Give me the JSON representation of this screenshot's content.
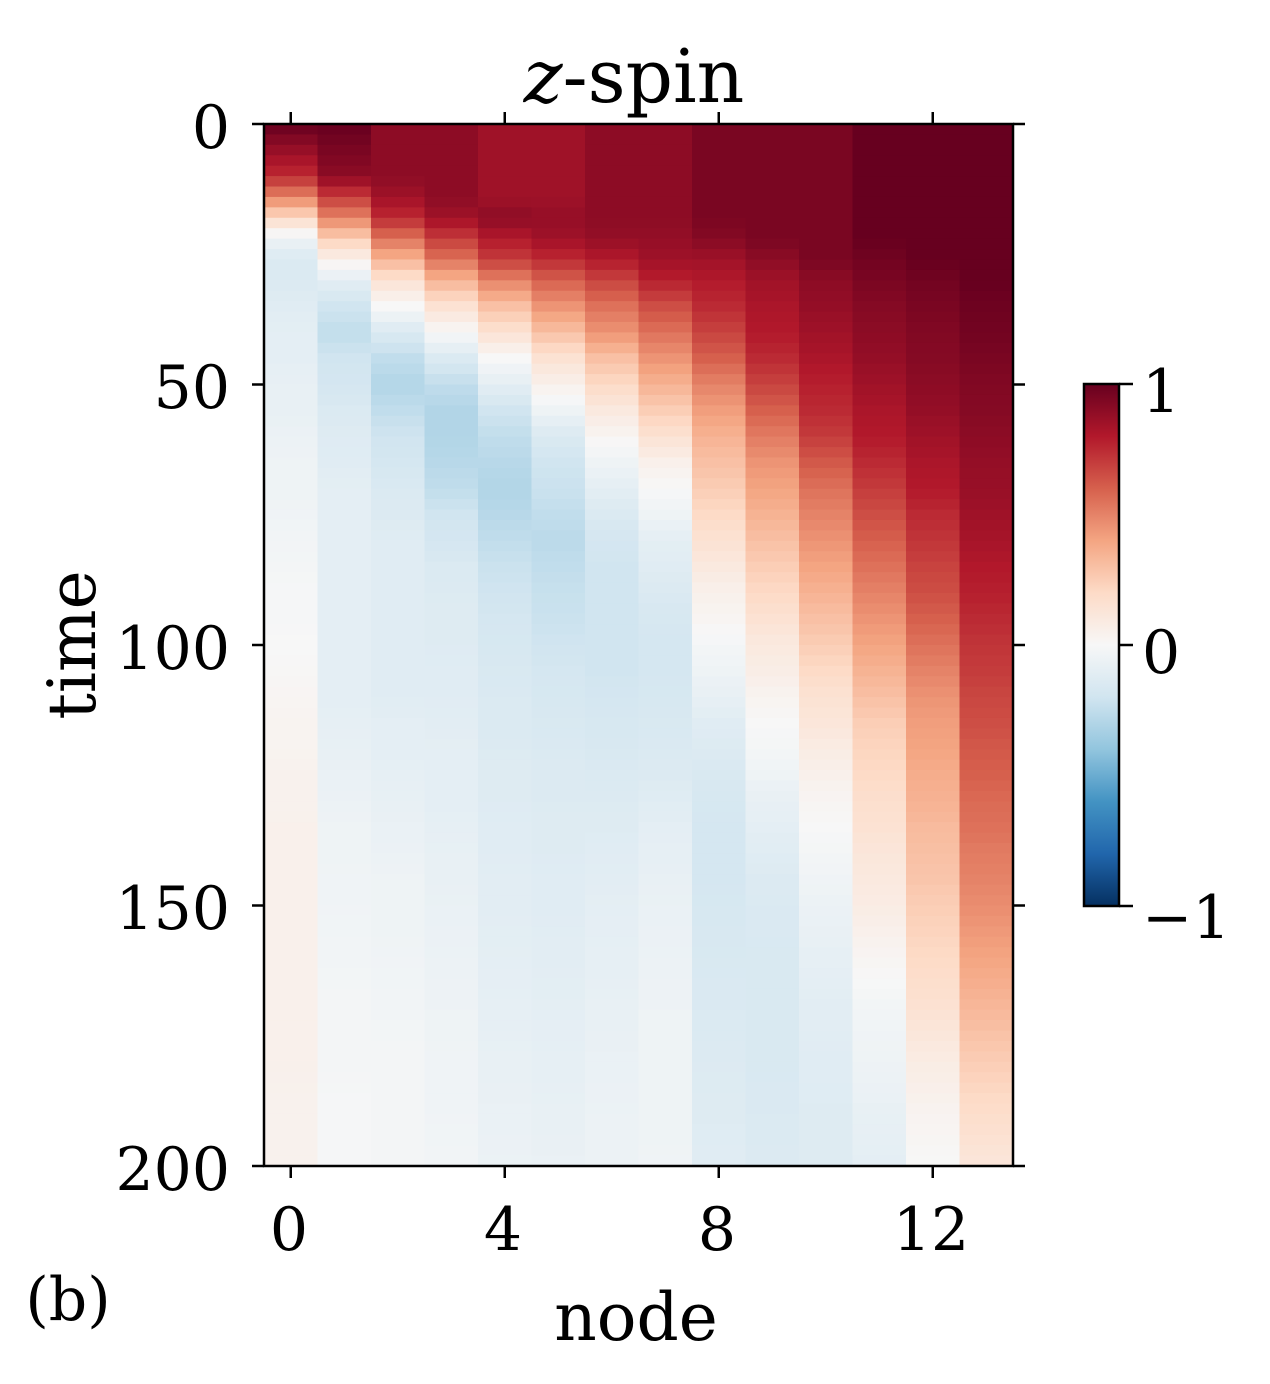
{
  "chart_data": {
    "type": "heatmap",
    "title_var": "z",
    "title_rest": "-spin",
    "xlabel": "node",
    "ylabel": "time",
    "panel_label": "(b)",
    "x_ticks": [
      "0",
      "4",
      "8",
      "12"
    ],
    "y_ticks": [
      "0",
      "50",
      "100",
      "150",
      "200"
    ],
    "colorbar_ticks": [
      "1",
      "0",
      "−1"
    ],
    "colormap": "RdBu_r",
    "colorbar_colors": [
      "#053061",
      "#2166ac",
      "#4393c3",
      "#92c5de",
      "#d1e5f0",
      "#f7f7f7",
      "#fddbc7",
      "#f4a582",
      "#d6604d",
      "#b2182b",
      "#67001f"
    ],
    "nodes": [
      0,
      1,
      2,
      3,
      4,
      5,
      6,
      7,
      8,
      9,
      10,
      11,
      12,
      13
    ],
    "x_range": [
      -0.5,
      13.5
    ],
    "y_range": [
      0,
      200
    ],
    "value_range": [
      -1,
      1
    ],
    "time_samples": [
      0,
      10,
      14,
      18,
      22,
      26,
      30,
      35,
      40,
      45,
      50,
      55,
      60,
      65,
      70,
      75,
      80,
      85,
      90,
      95,
      100,
      105,
      110,
      115,
      120,
      125,
      130,
      135,
      140,
      145,
      150,
      160,
      170,
      180,
      190,
      200
    ],
    "values": [
      [
        1.0,
        1.0,
        0.9,
        0.9,
        0.85,
        0.85,
        0.9,
        0.9,
        0.95,
        0.95,
        0.95,
        1.0,
        1.0,
        1.0
      ],
      [
        0.75,
        0.9,
        0.9,
        0.9,
        0.85,
        0.85,
        0.9,
        0.9,
        0.95,
        0.95,
        0.95,
        1.0,
        1.0,
        1.0
      ],
      [
        0.5,
        0.7,
        0.85,
        0.9,
        0.85,
        0.85,
        0.9,
        0.9,
        0.95,
        0.95,
        0.95,
        1.0,
        1.0,
        1.0
      ],
      [
        0.2,
        0.5,
        0.75,
        0.85,
        0.9,
        0.88,
        0.9,
        0.9,
        0.95,
        0.95,
        0.95,
        1.0,
        1.0,
        1.0
      ],
      [
        -0.05,
        0.25,
        0.55,
        0.7,
        0.8,
        0.85,
        0.88,
        0.88,
        0.92,
        0.95,
        0.95,
        1.0,
        1.0,
        1.0
      ],
      [
        -0.15,
        0.05,
        0.35,
        0.55,
        0.7,
        0.75,
        0.8,
        0.85,
        0.85,
        0.9,
        0.95,
        0.97,
        1.0,
        1.0
      ],
      [
        -0.15,
        -0.1,
        0.15,
        0.35,
        0.5,
        0.6,
        0.68,
        0.78,
        0.8,
        0.85,
        0.9,
        0.95,
        0.97,
        1.0
      ],
      [
        -0.12,
        -0.2,
        0.0,
        0.15,
        0.3,
        0.45,
        0.55,
        0.65,
        0.75,
        0.82,
        0.88,
        0.92,
        0.95,
        0.98
      ],
      [
        -0.1,
        -0.25,
        -0.15,
        0.0,
        0.15,
        0.3,
        0.45,
        0.55,
        0.68,
        0.8,
        0.85,
        0.9,
        0.93,
        0.97
      ],
      [
        -0.1,
        -0.2,
        -0.25,
        -0.15,
        0.0,
        0.15,
        0.3,
        0.45,
        0.6,
        0.75,
        0.82,
        0.88,
        0.92,
        0.95
      ],
      [
        -0.08,
        -0.18,
        -0.3,
        -0.25,
        -0.1,
        0.05,
        0.2,
        0.35,
        0.5,
        0.68,
        0.78,
        0.85,
        0.9,
        0.93
      ],
      [
        -0.08,
        -0.15,
        -0.25,
        -0.3,
        -0.2,
        -0.05,
        0.1,
        0.25,
        0.42,
        0.6,
        0.75,
        0.82,
        0.88,
        0.92
      ],
      [
        -0.06,
        -0.13,
        -0.2,
        -0.3,
        -0.25,
        -0.15,
        0.02,
        0.15,
        0.35,
        0.52,
        0.7,
        0.8,
        0.85,
        0.9
      ],
      [
        -0.05,
        -0.12,
        -0.18,
        -0.28,
        -0.28,
        -0.2,
        -0.05,
        0.05,
        0.3,
        0.45,
        0.62,
        0.75,
        0.82,
        0.88
      ],
      [
        -0.05,
        -0.1,
        -0.15,
        -0.25,
        -0.3,
        -0.22,
        -0.1,
        0.0,
        0.25,
        0.4,
        0.55,
        0.7,
        0.8,
        0.87
      ],
      [
        -0.04,
        -0.1,
        -0.14,
        -0.2,
        -0.28,
        -0.25,
        -0.15,
        -0.05,
        0.2,
        0.35,
        0.5,
        0.65,
        0.75,
        0.85
      ],
      [
        -0.03,
        -0.1,
        -0.12,
        -0.18,
        -0.25,
        -0.27,
        -0.18,
        -0.1,
        0.15,
        0.3,
        0.45,
        0.6,
        0.72,
        0.83
      ],
      [
        -0.02,
        -0.1,
        -0.12,
        -0.15,
        -0.22,
        -0.25,
        -0.2,
        -0.12,
        0.1,
        0.25,
        0.4,
        0.55,
        0.68,
        0.8
      ],
      [
        -0.01,
        -0.1,
        -0.12,
        -0.14,
        -0.2,
        -0.23,
        -0.2,
        -0.15,
        0.05,
        0.2,
        0.35,
        0.5,
        0.65,
        0.78
      ],
      [
        -0.01,
        -0.1,
        -0.12,
        -0.13,
        -0.18,
        -0.22,
        -0.2,
        -0.17,
        0.02,
        0.15,
        0.3,
        0.45,
        0.6,
        0.75
      ],
      [
        0.0,
        -0.1,
        -0.12,
        -0.13,
        -0.17,
        -0.2,
        -0.2,
        -0.18,
        -0.02,
        0.1,
        0.25,
        0.4,
        0.55,
        0.72
      ],
      [
        0.01,
        -0.1,
        -0.12,
        -0.12,
        -0.16,
        -0.18,
        -0.2,
        -0.18,
        -0.05,
        0.07,
        0.2,
        0.35,
        0.5,
        0.7
      ],
      [
        0.02,
        -0.1,
        -0.12,
        -0.12,
        -0.15,
        -0.17,
        -0.18,
        -0.17,
        -0.08,
        0.03,
        0.15,
        0.3,
        0.45,
        0.67
      ],
      [
        0.03,
        -0.09,
        -0.1,
        -0.11,
        -0.15,
        -0.16,
        -0.17,
        -0.16,
        -0.12,
        0.0,
        0.12,
        0.25,
        0.42,
        0.65
      ],
      [
        0.03,
        -0.08,
        -0.1,
        -0.1,
        -0.14,
        -0.15,
        -0.16,
        -0.15,
        -0.14,
        -0.02,
        0.08,
        0.22,
        0.4,
        0.62
      ],
      [
        0.04,
        -0.07,
        -0.09,
        -0.1,
        -0.13,
        -0.14,
        -0.15,
        -0.14,
        -0.16,
        -0.05,
        0.05,
        0.2,
        0.37,
        0.6
      ],
      [
        0.04,
        -0.06,
        -0.08,
        -0.1,
        -0.13,
        -0.14,
        -0.14,
        -0.12,
        -0.17,
        -0.08,
        0.02,
        0.17,
        0.35,
        0.57
      ],
      [
        0.05,
        -0.05,
        -0.07,
        -0.09,
        -0.12,
        -0.13,
        -0.13,
        -0.1,
        -0.18,
        -0.1,
        0.0,
        0.15,
        0.32,
        0.55
      ],
      [
        0.05,
        -0.05,
        -0.06,
        -0.08,
        -0.12,
        -0.13,
        -0.12,
        -0.09,
        -0.18,
        -0.12,
        -0.02,
        0.12,
        0.3,
        0.52
      ],
      [
        0.05,
        -0.04,
        -0.05,
        -0.08,
        -0.11,
        -0.12,
        -0.11,
        -0.08,
        -0.18,
        -0.14,
        -0.04,
        0.1,
        0.28,
        0.5
      ],
      [
        0.05,
        -0.04,
        -0.05,
        -0.07,
        -0.11,
        -0.12,
        -0.1,
        -0.07,
        -0.17,
        -0.15,
        -0.06,
        0.08,
        0.25,
        0.47
      ],
      [
        0.05,
        -0.03,
        -0.04,
        -0.06,
        -0.1,
        -0.11,
        -0.09,
        -0.06,
        -0.16,
        -0.16,
        -0.09,
        0.02,
        0.2,
        0.4
      ],
      [
        0.05,
        -0.02,
        -0.03,
        -0.05,
        -0.09,
        -0.1,
        -0.08,
        -0.05,
        -0.15,
        -0.16,
        -0.11,
        -0.03,
        0.15,
        0.33
      ],
      [
        0.05,
        -0.02,
        -0.02,
        -0.04,
        -0.08,
        -0.09,
        -0.07,
        -0.05,
        -0.14,
        -0.16,
        -0.12,
        -0.05,
        0.08,
        0.25
      ],
      [
        0.04,
        -0.01,
        -0.02,
        -0.04,
        -0.07,
        -0.08,
        -0.06,
        -0.05,
        -0.13,
        -0.15,
        -0.13,
        -0.08,
        0.03,
        0.18
      ],
      [
        0.04,
        -0.01,
        -0.02,
        -0.03,
        -0.06,
        -0.07,
        -0.06,
        -0.04,
        -0.12,
        -0.14,
        -0.13,
        -0.1,
        0.0,
        0.12
      ]
    ]
  }
}
